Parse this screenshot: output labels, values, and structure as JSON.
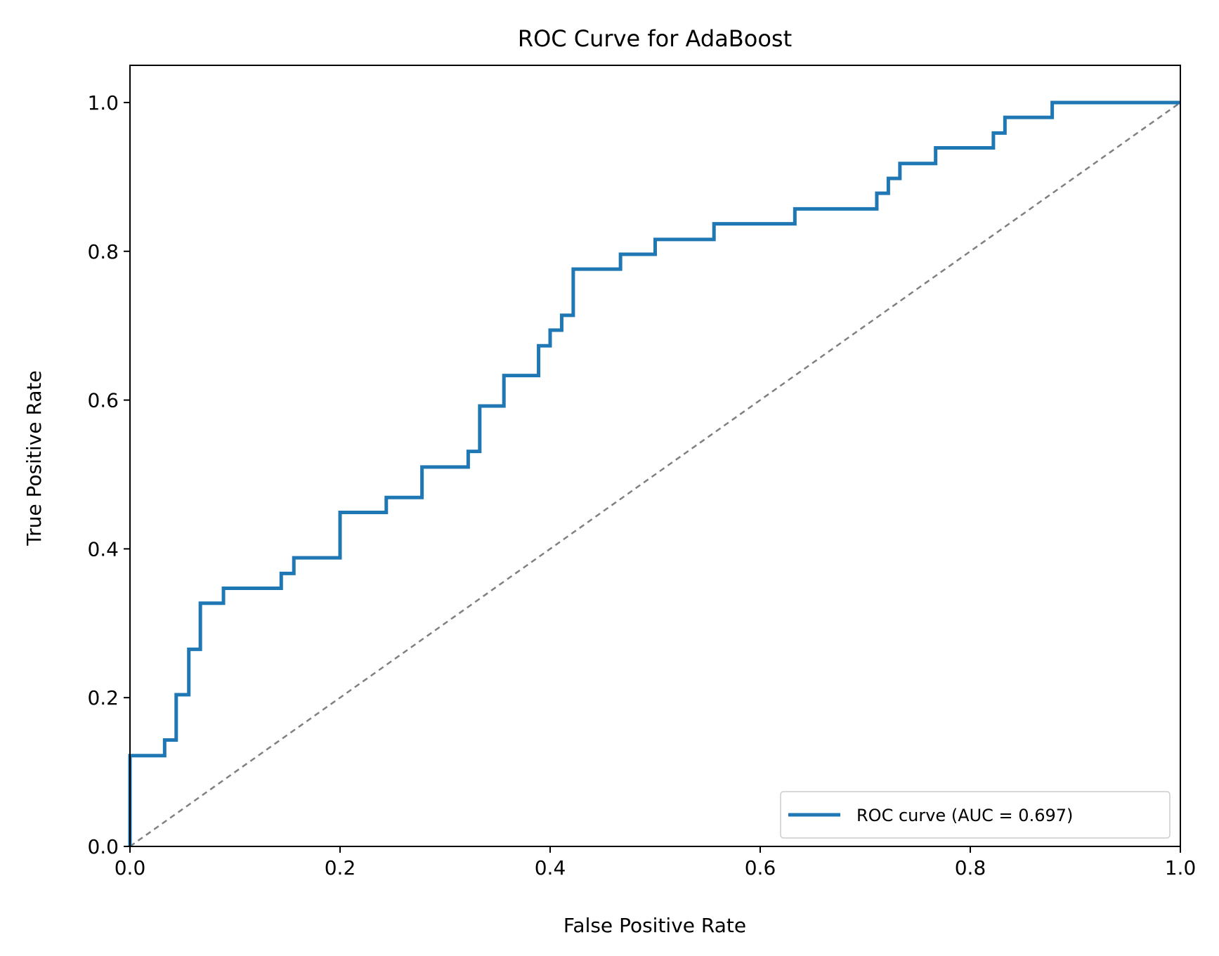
{
  "chart_data": {
    "type": "line",
    "title": "ROC Curve for AdaBoost",
    "xlabel": "False Positive Rate",
    "ylabel": "True Positive Rate",
    "xlim": [
      0.0,
      1.0
    ],
    "ylim": [
      0.0,
      1.05
    ],
    "x_ticks": [
      "0.0",
      "0.2",
      "0.4",
      "0.6",
      "0.8",
      "1.0"
    ],
    "x_tick_values": [
      0.0,
      0.2,
      0.4,
      0.6,
      0.8,
      1.0
    ],
    "y_ticks": [
      "0.0",
      "0.2",
      "0.4",
      "0.6",
      "0.8",
      "1.0"
    ],
    "y_tick_values": [
      0.0,
      0.2,
      0.4,
      0.6,
      0.8,
      1.0
    ],
    "grid": false,
    "legend_position": "lower-right",
    "series": [
      {
        "name": "ROC curve (AUC = 0.697)",
        "color": "#1f77b4",
        "style": "step",
        "points": [
          [
            0.0,
            0.0
          ],
          [
            0.0,
            0.122
          ],
          [
            0.033,
            0.122
          ],
          [
            0.033,
            0.143
          ],
          [
            0.044,
            0.143
          ],
          [
            0.044,
            0.204
          ],
          [
            0.056,
            0.204
          ],
          [
            0.056,
            0.265
          ],
          [
            0.067,
            0.265
          ],
          [
            0.067,
            0.327
          ],
          [
            0.089,
            0.327
          ],
          [
            0.089,
            0.347
          ],
          [
            0.144,
            0.347
          ],
          [
            0.144,
            0.367
          ],
          [
            0.156,
            0.367
          ],
          [
            0.156,
            0.388
          ],
          [
            0.2,
            0.388
          ],
          [
            0.2,
            0.449
          ],
          [
            0.244,
            0.449
          ],
          [
            0.244,
            0.469
          ],
          [
            0.278,
            0.469
          ],
          [
            0.278,
            0.51
          ],
          [
            0.322,
            0.51
          ],
          [
            0.322,
            0.531
          ],
          [
            0.333,
            0.531
          ],
          [
            0.333,
            0.592
          ],
          [
            0.356,
            0.592
          ],
          [
            0.356,
            0.633
          ],
          [
            0.389,
            0.633
          ],
          [
            0.389,
            0.673
          ],
          [
            0.4,
            0.673
          ],
          [
            0.4,
            0.694
          ],
          [
            0.411,
            0.694
          ],
          [
            0.411,
            0.714
          ],
          [
            0.422,
            0.714
          ],
          [
            0.422,
            0.776
          ],
          [
            0.467,
            0.776
          ],
          [
            0.467,
            0.796
          ],
          [
            0.5,
            0.796
          ],
          [
            0.5,
            0.816
          ],
          [
            0.556,
            0.816
          ],
          [
            0.556,
            0.837
          ],
          [
            0.633,
            0.837
          ],
          [
            0.633,
            0.857
          ],
          [
            0.711,
            0.857
          ],
          [
            0.711,
            0.878
          ],
          [
            0.722,
            0.878
          ],
          [
            0.722,
            0.898
          ],
          [
            0.733,
            0.898
          ],
          [
            0.733,
            0.918
          ],
          [
            0.767,
            0.918
          ],
          [
            0.767,
            0.939
          ],
          [
            0.822,
            0.939
          ],
          [
            0.822,
            0.959
          ],
          [
            0.833,
            0.959
          ],
          [
            0.833,
            0.98
          ],
          [
            0.878,
            0.98
          ],
          [
            0.878,
            1.0
          ],
          [
            1.0,
            1.0
          ]
        ]
      },
      {
        "name": "",
        "color": "#808080",
        "style": "dashed",
        "points": [
          [
            0.0,
            0.0
          ],
          [
            1.0,
            1.0
          ]
        ]
      }
    ]
  }
}
